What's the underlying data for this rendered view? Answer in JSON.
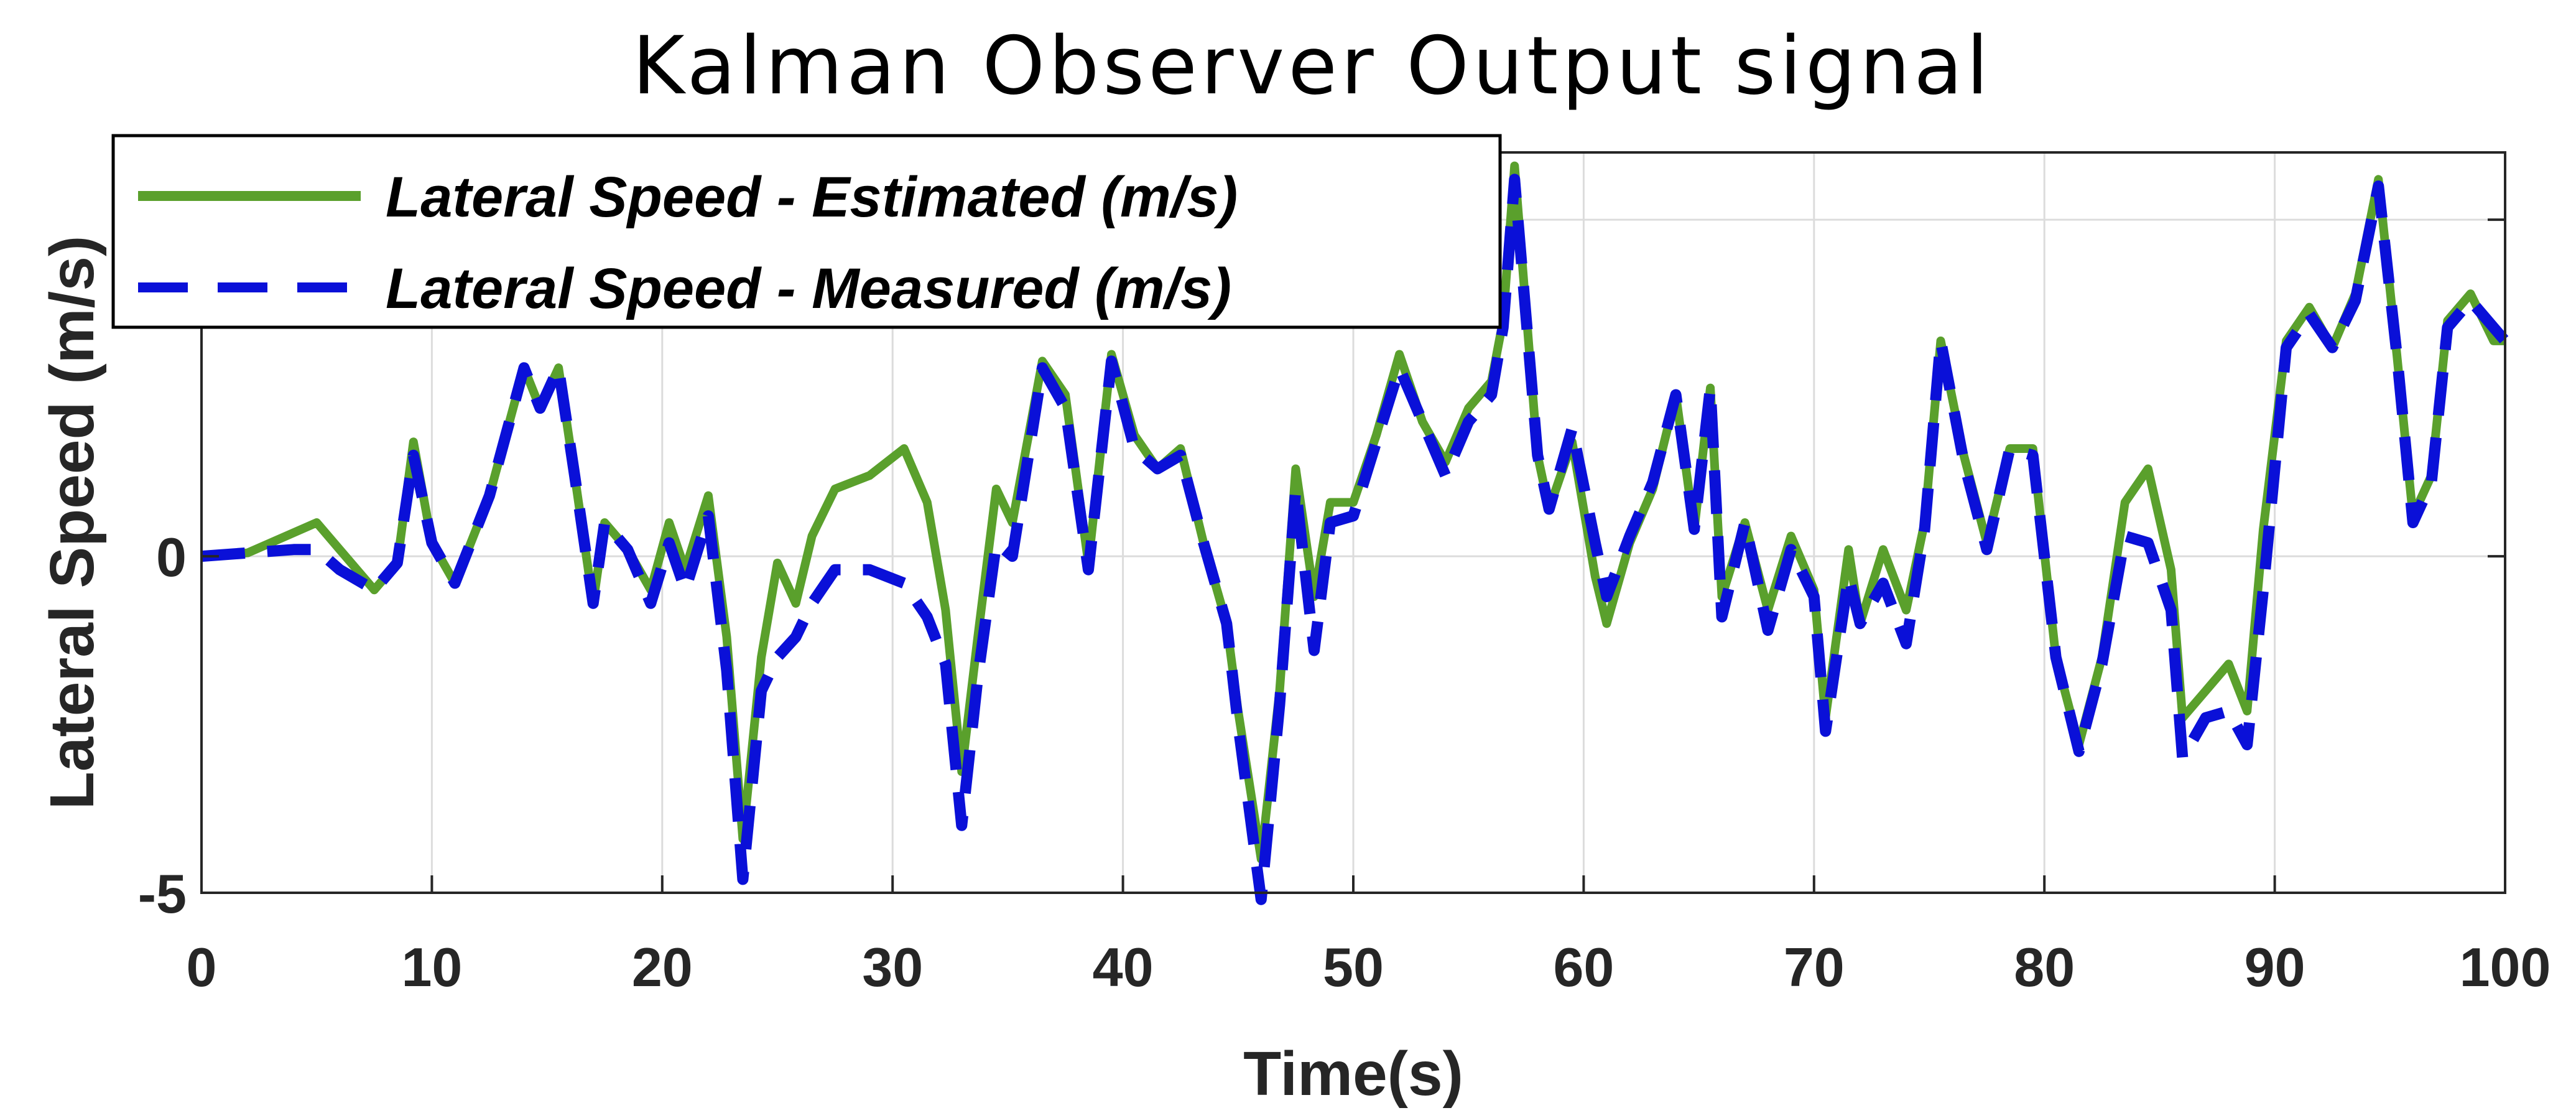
{
  "chart_data": {
    "type": "line",
    "title": "Kalman Observer Output signal",
    "xlabel": "Time(s)",
    "ylabel": "Lateral Speed (m/s)",
    "xlim": [
      0,
      100
    ],
    "ylim": [
      -5,
      6
    ],
    "xticks": [
      0,
      10,
      20,
      30,
      40,
      50,
      60,
      70,
      80,
      90,
      100
    ],
    "xtick_labels": [
      "0",
      "10",
      "20",
      "30",
      "40",
      "50",
      "60",
      "70",
      "80",
      "90",
      "100"
    ],
    "yticks": [
      -5,
      0,
      5
    ],
    "ytick_labels": [
      "-5",
      "0",
      ""
    ],
    "grid": true,
    "legend_position": "top-left",
    "series": [
      {
        "name": "Lateral Speed - Estimated (m/s)",
        "color": "#5aa02c",
        "style": "solid",
        "points": [
          [
            0,
            0
          ],
          [
            2,
            0.05
          ],
          [
            5,
            0.5
          ],
          [
            6,
            0.1
          ],
          [
            7.5,
            -0.5
          ],
          [
            8.5,
            -0.1
          ],
          [
            9.2,
            1.7
          ],
          [
            10,
            0.2
          ],
          [
            11,
            -0.4
          ],
          [
            12.5,
            0.9
          ],
          [
            14,
            2.8
          ],
          [
            14.7,
            2.2
          ],
          [
            15.5,
            2.8
          ],
          [
            16.2,
            1.2
          ],
          [
            17,
            -0.7
          ],
          [
            17.5,
            0.5
          ],
          [
            18.5,
            0.1
          ],
          [
            19.5,
            -0.5
          ],
          [
            20.3,
            0.5
          ],
          [
            21,
            -0.2
          ],
          [
            22,
            0.9
          ],
          [
            22.8,
            -1.2
          ],
          [
            23.5,
            -4.2
          ],
          [
            24.3,
            -1.5
          ],
          [
            25,
            -0.1
          ],
          [
            25.8,
            -0.7
          ],
          [
            26.5,
            0.3
          ],
          [
            27.5,
            1.0
          ],
          [
            29,
            1.2
          ],
          [
            30.5,
            1.6
          ],
          [
            31.5,
            0.8
          ],
          [
            32.3,
            -0.8
          ],
          [
            33,
            -3.2
          ],
          [
            33.7,
            -1.2
          ],
          [
            34.5,
            1.0
          ],
          [
            35.2,
            0.5
          ],
          [
            36.5,
            2.9
          ],
          [
            37.5,
            2.4
          ],
          [
            38.5,
            -0.1
          ],
          [
            39.5,
            3.0
          ],
          [
            40.5,
            1.8
          ],
          [
            41.5,
            1.3
          ],
          [
            42.5,
            1.6
          ],
          [
            43.5,
            0.2
          ],
          [
            44.5,
            -1.0
          ],
          [
            45,
            -2.3
          ],
          [
            46,
            -4.5
          ],
          [
            46.8,
            -2.0
          ],
          [
            47.5,
            1.3
          ],
          [
            48.3,
            -0.6
          ],
          [
            49,
            0.8
          ],
          [
            50,
            0.8
          ],
          [
            51,
            1.8
          ],
          [
            52,
            3.0
          ],
          [
            53,
            2.0
          ],
          [
            54,
            1.4
          ],
          [
            55,
            2.2
          ],
          [
            56,
            2.6
          ],
          [
            56.5,
            3.5
          ],
          [
            57,
            5.8
          ],
          [
            58,
            1.5
          ],
          [
            58.5,
            0.7
          ],
          [
            59.5,
            1.7
          ],
          [
            60.5,
            -0.3
          ],
          [
            61,
            -1.0
          ],
          [
            62,
            0.2
          ],
          [
            63,
            1.0
          ],
          [
            64,
            2.4
          ],
          [
            64.8,
            0.4
          ],
          [
            65.5,
            2.5
          ],
          [
            66,
            -0.6
          ],
          [
            67,
            0.5
          ],
          [
            68,
            -0.8
          ],
          [
            69,
            0.3
          ],
          [
            70,
            -0.5
          ],
          [
            70.5,
            -2.4
          ],
          [
            71.5,
            0.1
          ],
          [
            72,
            -1.0
          ],
          [
            73,
            0.1
          ],
          [
            74,
            -0.8
          ],
          [
            74.8,
            0.5
          ],
          [
            75.5,
            3.2
          ],
          [
            76.5,
            1.5
          ],
          [
            77.5,
            0.2
          ],
          [
            78.5,
            1.6
          ],
          [
            79.5,
            1.6
          ],
          [
            80.5,
            -1.5
          ],
          [
            81.5,
            -2.8
          ],
          [
            82.5,
            -1.5
          ],
          [
            83.5,
            0.8
          ],
          [
            84.5,
            1.3
          ],
          [
            85.5,
            -0.2
          ],
          [
            86,
            -2.4
          ],
          [
            87,
            -2.0
          ],
          [
            88,
            -1.6
          ],
          [
            88.8,
            -2.3
          ],
          [
            89.5,
            0.4
          ],
          [
            90.5,
            3.2
          ],
          [
            91.5,
            3.7
          ],
          [
            92.5,
            3.1
          ],
          [
            93.5,
            3.9
          ],
          [
            94.5,
            5.6
          ],
          [
            95.3,
            3.0
          ],
          [
            96,
            0.6
          ],
          [
            96.8,
            1.2
          ],
          [
            97.5,
            3.5
          ],
          [
            98.5,
            3.9
          ],
          [
            99.5,
            3.2
          ],
          [
            100,
            3.2
          ]
        ]
      },
      {
        "name": "Lateral Speed - Measured (m/s)",
        "color": "#0a10d8",
        "style": "dashed",
        "points": [
          [
            0,
            0
          ],
          [
            2,
            0.05
          ],
          [
            4,
            0.1
          ],
          [
            5,
            0.1
          ],
          [
            6,
            -0.2
          ],
          [
            7.5,
            -0.5
          ],
          [
            8.5,
            -0.1
          ],
          [
            9.2,
            1.5
          ],
          [
            10,
            0.2
          ],
          [
            11,
            -0.4
          ],
          [
            12.5,
            0.9
          ],
          [
            14,
            2.8
          ],
          [
            14.7,
            2.2
          ],
          [
            15.5,
            2.8
          ],
          [
            16.2,
            1.2
          ],
          [
            17,
            -0.7
          ],
          [
            17.5,
            0.5
          ],
          [
            18.5,
            0.1
          ],
          [
            19.5,
            -0.7
          ],
          [
            20.3,
            0.2
          ],
          [
            21,
            -0.5
          ],
          [
            22,
            0.6
          ],
          [
            22.8,
            -1.7
          ],
          [
            23.5,
            -4.8
          ],
          [
            24.3,
            -2.0
          ],
          [
            25,
            -1.5
          ],
          [
            25.8,
            -1.2
          ],
          [
            26.5,
            -0.7
          ],
          [
            27.5,
            -0.2
          ],
          [
            29,
            -0.2
          ],
          [
            30.5,
            -0.4
          ],
          [
            31.5,
            -0.9
          ],
          [
            32.3,
            -1.6
          ],
          [
            33,
            -4.0
          ],
          [
            33.7,
            -1.8
          ],
          [
            34.5,
            0.2
          ],
          [
            35.2,
            0.0
          ],
          [
            36.5,
            2.8
          ],
          [
            37.5,
            2.2
          ],
          [
            38.5,
            -0.2
          ],
          [
            39.5,
            2.9
          ],
          [
            40.5,
            1.6
          ],
          [
            41.5,
            1.3
          ],
          [
            42.5,
            1.5
          ],
          [
            43.5,
            0.2
          ],
          [
            44.5,
            -1.0
          ],
          [
            45,
            -2.5
          ],
          [
            46,
            -5.1
          ],
          [
            46.8,
            -2.2
          ],
          [
            47.5,
            1.0
          ],
          [
            48.3,
            -1.4
          ],
          [
            49,
            0.5
          ],
          [
            50,
            0.6
          ],
          [
            51,
            1.7
          ],
          [
            52,
            2.8
          ],
          [
            53,
            2.0
          ],
          [
            54,
            1.2
          ],
          [
            55,
            2.0
          ],
          [
            56,
            2.4
          ],
          [
            56.5,
            3.4
          ],
          [
            57,
            5.6
          ],
          [
            58,
            1.5
          ],
          [
            58.5,
            0.7
          ],
          [
            59.5,
            1.9
          ],
          [
            60.5,
            0.2
          ],
          [
            61,
            -0.6
          ],
          [
            62,
            0.3
          ],
          [
            63,
            1.1
          ],
          [
            64,
            2.4
          ],
          [
            64.8,
            0.4
          ],
          [
            65.5,
            2.5
          ],
          [
            66,
            -0.9
          ],
          [
            67,
            0.5
          ],
          [
            68,
            -1.1
          ],
          [
            69,
            0.1
          ],
          [
            70,
            -0.6
          ],
          [
            70.5,
            -2.6
          ],
          [
            71.5,
            -0.3
          ],
          [
            72,
            -1.0
          ],
          [
            73,
            -0.4
          ],
          [
            74,
            -1.3
          ],
          [
            74.8,
            0.4
          ],
          [
            75.5,
            3.2
          ],
          [
            76.5,
            1.4
          ],
          [
            77.5,
            0.1
          ],
          [
            78.5,
            1.6
          ],
          [
            79.5,
            1.5
          ],
          [
            80.5,
            -1.5
          ],
          [
            81.5,
            -2.9
          ],
          [
            82.5,
            -1.6
          ],
          [
            83.5,
            0.3
          ],
          [
            84.5,
            0.2
          ],
          [
            85.5,
            -0.8
          ],
          [
            86,
            -3.0
          ],
          [
            87,
            -2.4
          ],
          [
            88,
            -2.3
          ],
          [
            88.8,
            -2.8
          ],
          [
            89.5,
            -0.5
          ],
          [
            90.5,
            3.1
          ],
          [
            91.5,
            3.6
          ],
          [
            92.5,
            3.1
          ],
          [
            93.5,
            3.8
          ],
          [
            94.5,
            5.5
          ],
          [
            95.3,
            3.0
          ],
          [
            96,
            0.5
          ],
          [
            96.8,
            1.1
          ],
          [
            97.5,
            3.4
          ],
          [
            98.5,
            3.8
          ],
          [
            99.5,
            3.4
          ],
          [
            100,
            3.2
          ]
        ]
      }
    ]
  }
}
